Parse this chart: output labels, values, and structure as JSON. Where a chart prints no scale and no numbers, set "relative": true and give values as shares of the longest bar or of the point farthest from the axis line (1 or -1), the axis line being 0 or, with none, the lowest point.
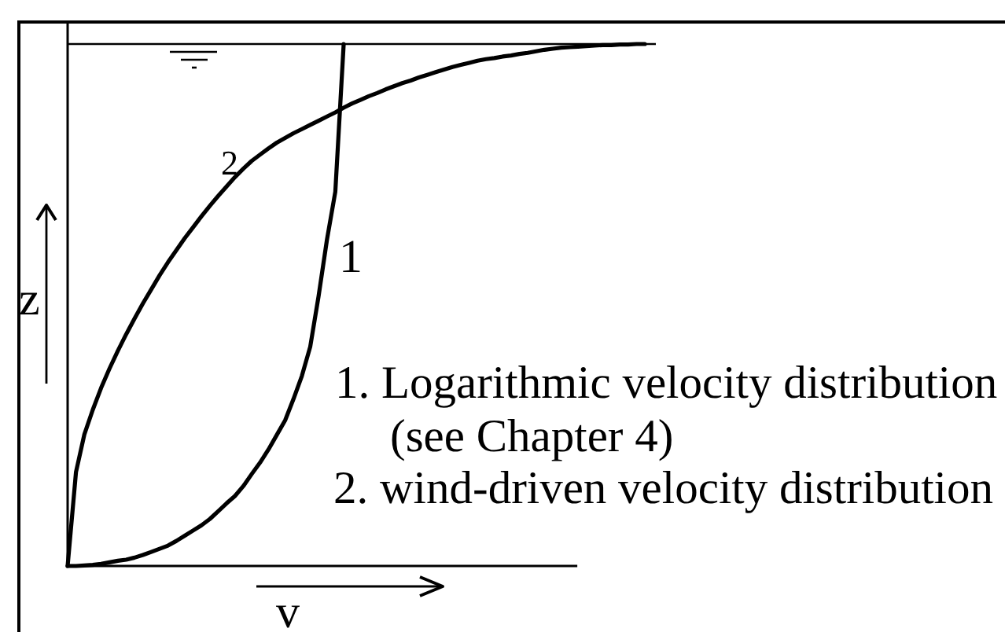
{
  "chart_data": {
    "type": "line",
    "relative": true,
    "xlabel": "v",
    "ylabel": "z",
    "categories": [
      null,
      null,
      null,
      null,
      null,
      null,
      null,
      null,
      null,
      null,
      null,
      null,
      null,
      null,
      null,
      null,
      null,
      null,
      null,
      null,
      null,
      null,
      null,
      null,
      null,
      null,
      null,
      null,
      null,
      null,
      null,
      null,
      null,
      null,
      null,
      null,
      null,
      null,
      null,
      null,
      null,
      null,
      null,
      null,
      null,
      null,
      null,
      null,
      null,
      null,
      null,
      null,
      null,
      null,
      null,
      null,
      null,
      null,
      null,
      null,
      null,
      null,
      null,
      null,
      null,
      null,
      null,
      null,
      null,
      null
    ],
    "series": [
      {
        "name": "1",
        "color": "#000000",
        "values": [
          0,
          0,
          0.001,
          0.002,
          0.004,
          0.007,
          0.01,
          0.012,
          0.016,
          0.021,
          0.027,
          0.033,
          0.039,
          0.048,
          0.058,
          0.068,
          0.078,
          0.09,
          0.105,
          0.12,
          0.134,
          0.153,
          0.176,
          0.198,
          0.223,
          0.251,
          0.279,
          0.32,
          0.364,
          0.42,
          0.517,
          0.625,
          0.717,
          1,
          null,
          null,
          null,
          null,
          null,
          null,
          null,
          null,
          null,
          null,
          null,
          null,
          null,
          null,
          null,
          null,
          null,
          null,
          null,
          null,
          null,
          null,
          null,
          null,
          null,
          null,
          null,
          null,
          null,
          null,
          null,
          null,
          null,
          null,
          null,
          null
        ]
      },
      {
        "name": "2",
        "color": "#000000",
        "values": [
          0,
          0.18,
          0.252,
          0.299,
          0.341,
          0.378,
          0.412,
          0.444,
          0.474,
          0.503,
          0.53,
          0.557,
          0.582,
          0.605,
          0.628,
          0.649,
          0.67,
          0.69,
          0.709,
          0.727,
          0.745,
          0.761,
          0.776,
          0.788,
          0.8,
          0.811,
          0.82,
          0.829,
          0.837,
          0.845,
          0.853,
          0.861,
          0.869,
          0.878,
          0.886,
          0.893,
          0.9,
          0.906,
          0.913,
          0.919,
          0.925,
          0.93,
          0.936,
          0.941,
          0.946,
          0.951,
          0.956,
          0.96,
          0.964,
          0.968,
          0.971,
          0.973,
          0.976,
          0.978,
          0.981,
          0.983,
          0.986,
          0.989,
          0.991,
          0.993,
          0.994,
          0.995,
          0.996,
          0.997,
          0.998,
          0.998,
          0.999,
          0.999,
          1,
          1
        ]
      }
    ],
    "ref_lines": [
      {
        "axis": "y",
        "value": 1,
        "color": "#000000"
      }
    ],
    "annotations": [
      "1. Logarithmic velocity distribution",
      "(see Chapter 4)",
      "2. wind-driven velocity distribution"
    ]
  }
}
